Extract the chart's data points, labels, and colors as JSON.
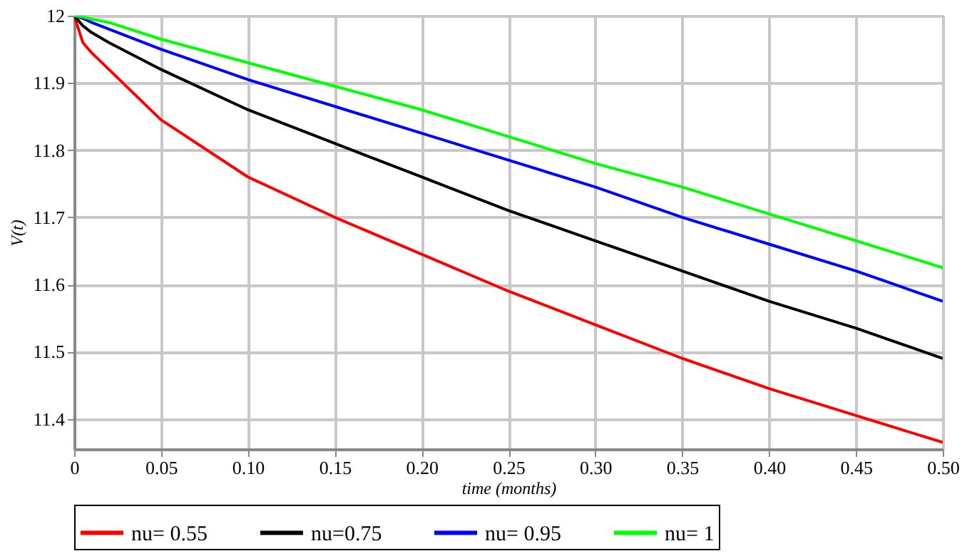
{
  "chart_data": {
    "type": "line",
    "xlabel": "time (months)",
    "ylabel": "V(t)",
    "x": [
      0,
      0.005,
      0.01,
      0.02,
      0.05,
      0.1,
      0.15,
      0.2,
      0.25,
      0.3,
      0.35,
      0.4,
      0.45,
      0.5
    ],
    "xlim": [
      0,
      0.5
    ],
    "ylim": [
      11.355,
      12
    ],
    "xticks": [
      0,
      {
        "value": 0.05,
        "label": "0.05"
      },
      {
        "value": 0.1,
        "label": "0.10"
      },
      {
        "value": 0.15,
        "label": "0.15"
      },
      {
        "value": 0.2,
        "label": "0.20"
      },
      {
        "value": 0.25,
        "label": "0.25"
      },
      {
        "value": 0.3,
        "label": "0.30"
      },
      {
        "value": 0.35,
        "label": "0.35"
      },
      {
        "value": 0.4,
        "label": "0.40"
      },
      {
        "value": 0.45,
        "label": "0.45"
      },
      {
        "value": 0.5,
        "label": "0.50"
      }
    ],
    "yticks": [
      11.4,
      11.5,
      11.6,
      11.7,
      11.8,
      11.9,
      12
    ],
    "grid": true,
    "legend": "bottom",
    "line_style": "solid",
    "marker": "none",
    "series": [
      {
        "name": "nu= 0.55",
        "color": "#ff0000",
        "values": [
          12,
          11.96,
          11.945,
          11.92,
          11.845,
          11.76,
          11.7,
          11.645,
          11.59,
          11.54,
          11.49,
          11.445,
          11.405,
          11.365
        ]
      },
      {
        "name": "nu=0.75",
        "color": "#000000",
        "values": [
          12,
          11.985,
          11.975,
          11.96,
          11.92,
          11.86,
          11.81,
          11.76,
          11.71,
          11.665,
          11.62,
          11.575,
          11.535,
          11.49
        ]
      },
      {
        "name": "nu= 0.95",
        "color": "#0000ff",
        "values": [
          12,
          11.996,
          11.99,
          11.98,
          11.95,
          11.905,
          11.865,
          11.825,
          11.785,
          11.745,
          11.7,
          11.66,
          11.62,
          11.575
        ]
      },
      {
        "name": "nu= 1",
        "color": "#00ff00",
        "values": [
          12,
          11.998,
          11.995,
          11.99,
          11.965,
          11.93,
          11.895,
          11.86,
          11.82,
          11.78,
          11.745,
          11.705,
          11.665,
          11.625
        ]
      }
    ]
  }
}
